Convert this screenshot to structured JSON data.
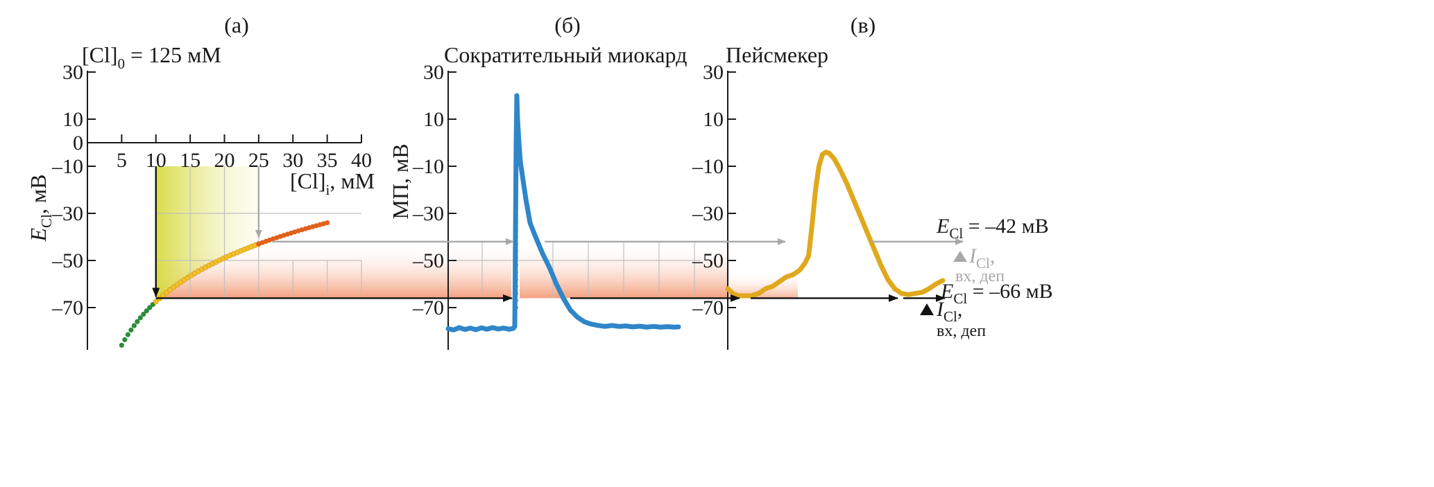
{
  "colors": {
    "axis": "#1a1a1a",
    "green": "#2e8b3a",
    "yellow": "#f2c12e",
    "orange": "#e2601a",
    "blue": "#2f86c9",
    "gold": "#e0a81c",
    "gray_arrow": "#a8a8a8",
    "black_arrow": "#111111",
    "grid": "#bfbfbf",
    "band": "#f4a080",
    "yellow_fill": "#dfe05a"
  },
  "chart_data": [
    {
      "id": "a",
      "type": "scatter",
      "panel_letter": "(а)",
      "subtitle": "[Cl]",
      "subtitle_sub": "0",
      "subtitle_rest": " = 125 мМ",
      "ylabel": "E",
      "ylabel_sub": "Cl",
      "ylabel_rest": ", мВ",
      "xlabel": "[Cl]",
      "xlabel_sub": "i",
      "xlabel_rest": ", мМ",
      "xlim": [
        0,
        40
      ],
      "ylim": [
        -90,
        30
      ],
      "xticks": [
        "5",
        "10",
        "15",
        "20",
        "25",
        "30",
        "35",
        "40"
      ],
      "yticks": [
        "30",
        "10",
        "0",
        "–10",
        "–30",
        "–50",
        "–70"
      ],
      "series": [
        {
          "color": "green",
          "x_range": [
            5,
            10
          ],
          "n_points": 12
        },
        {
          "color": "yellow",
          "x_range": [
            10,
            25
          ],
          "n_points": 30
        },
        {
          "color": "orange",
          "x_range": [
            25,
            35
          ],
          "n_points": 20
        }
      ],
      "nernst": {
        "slope_mV": 61.5,
        "Cl_out_mM": 125
      }
    },
    {
      "id": "b",
      "type": "line",
      "panel_letter": "(б)",
      "subtitle": "Сократительный миокард",
      "ylabel": "МП, мВ",
      "ylim": [
        -90,
        30
      ],
      "yticks": [
        "30",
        "10",
        "–10",
        "–30",
        "–50",
        "–70"
      ],
      "waveform": [
        [
          0,
          -79
        ],
        [
          8,
          -79.5
        ],
        [
          16,
          -78.5
        ],
        [
          24,
          -79.3
        ],
        [
          32,
          -78.7
        ],
        [
          40,
          -79.4
        ],
        [
          48,
          -78.6
        ],
        [
          56,
          -79.2
        ],
        [
          64,
          -78.5
        ],
        [
          72,
          -79.1
        ],
        [
          80,
          -78.7
        ],
        [
          88,
          -79.2
        ],
        [
          94,
          -78.8
        ],
        [
          96,
          -78
        ],
        [
          97,
          -40
        ],
        [
          98,
          0
        ],
        [
          99,
          20
        ],
        [
          100,
          10
        ],
        [
          102,
          0
        ],
        [
          104,
          -8
        ],
        [
          108,
          -16
        ],
        [
          112,
          -24
        ],
        [
          118,
          -34
        ],
        [
          126,
          -40
        ],
        [
          136,
          -47
        ],
        [
          146,
          -53
        ],
        [
          156,
          -60
        ],
        [
          166,
          -66
        ],
        [
          176,
          -71
        ],
        [
          186,
          -74
        ],
        [
          196,
          -76
        ],
        [
          206,
          -77
        ],
        [
          216,
          -77.6
        ],
        [
          226,
          -78
        ],
        [
          236,
          -77.6
        ],
        [
          246,
          -78
        ],
        [
          256,
          -77.8
        ],
        [
          266,
          -78.2
        ],
        [
          276,
          -77.9
        ],
        [
          286,
          -78.3
        ],
        [
          296,
          -78
        ],
        [
          306,
          -78.3
        ],
        [
          316,
          -78.1
        ],
        [
          326,
          -78.3
        ],
        [
          332,
          -78.2
        ]
      ]
    },
    {
      "id": "c",
      "type": "line",
      "panel_letter": "(в)",
      "subtitle": "Пейсмекер",
      "ylim": [
        -90,
        30
      ],
      "yticks": [
        "30",
        "10",
        "–10",
        "–30",
        "–50",
        "–70"
      ],
      "waveform": [
        [
          0,
          -62
        ],
        [
          6,
          -64
        ],
        [
          12,
          -65
        ],
        [
          20,
          -65
        ],
        [
          28,
          -65
        ],
        [
          36,
          -64
        ],
        [
          44,
          -62
        ],
        [
          52,
          -61
        ],
        [
          60,
          -59
        ],
        [
          68,
          -57
        ],
        [
          76,
          -56
        ],
        [
          84,
          -54
        ],
        [
          90,
          -51
        ],
        [
          94,
          -48
        ],
        [
          98,
          -35
        ],
        [
          102,
          -20
        ],
        [
          106,
          -10
        ],
        [
          110,
          -5
        ],
        [
          114,
          -4
        ],
        [
          118,
          -4.5
        ],
        [
          124,
          -7
        ],
        [
          130,
          -11
        ],
        [
          138,
          -17
        ],
        [
          146,
          -24
        ],
        [
          154,
          -31
        ],
        [
          162,
          -38
        ],
        [
          170,
          -45
        ],
        [
          178,
          -52
        ],
        [
          186,
          -58
        ],
        [
          194,
          -62
        ],
        [
          202,
          -64
        ],
        [
          210,
          -64.5
        ],
        [
          218,
          -64
        ],
        [
          226,
          -63.5
        ],
        [
          234,
          -62
        ],
        [
          242,
          -60
        ],
        [
          250,
          -58.5
        ]
      ]
    }
  ],
  "annotations": {
    "ecl1_label": "E",
    "ecl1_sub": "Cl",
    "ecl1_rest": " = –42 мВ",
    "icl1_label": "I",
    "icl1_sub": "Cl",
    "icl1_rest": ",",
    "icl1_line2": "вх, деп",
    "ecl2_label": "E",
    "ecl2_sub": "Cl",
    "ecl2_rest": " = –66 мВ",
    "icl2_label": "I",
    "icl2_sub": "Cl",
    "icl2_rest": ",",
    "icl2_line2": "вх, деп",
    "levels_mV": [
      -42,
      -66
    ]
  }
}
